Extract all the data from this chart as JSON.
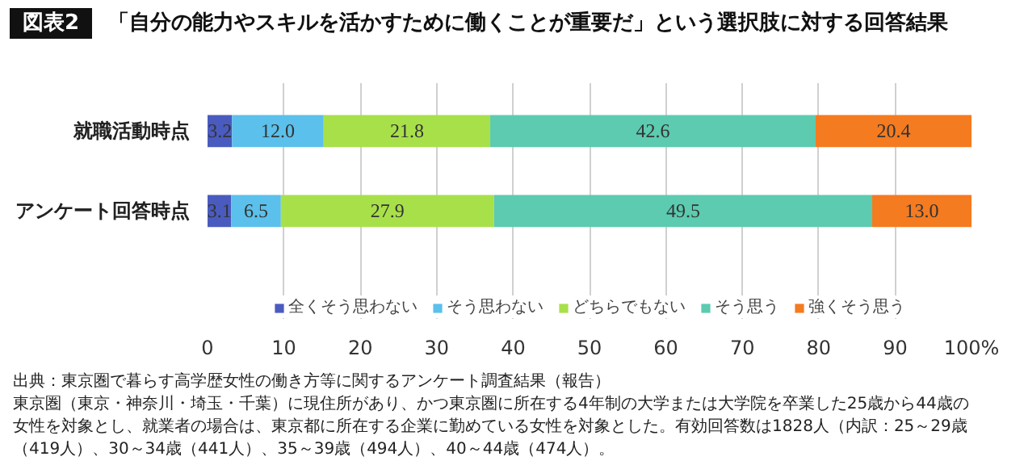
{
  "chart_data": {
    "type": "bar",
    "orientation": "horizontal",
    "stacked": true,
    "title": "図表2",
    "subtitle": "「自分の能力やスキルを活かすために働くことが重要だ」という選択肢に対する回答結果",
    "categories": [
      "就職活動時点",
      "アンケート回答時点"
    ],
    "series": [
      {
        "name": "全くそう思わない",
        "color": "#4a5bbf",
        "values": [
          3.2,
          3.1
        ],
        "value_labels": [
          "3.2",
          "3.1"
        ]
      },
      {
        "name": "そう思わない",
        "color": "#5bc0eb",
        "values": [
          12.0,
          6.5
        ],
        "value_labels": [
          "12.0",
          "6.5"
        ]
      },
      {
        "name": "どちらでもない",
        "color": "#a8e04a",
        "values": [
          21.8,
          27.9
        ],
        "value_labels": [
          "21.8",
          "27.9"
        ]
      },
      {
        "name": "そう思う",
        "color": "#5ccbb0",
        "values": [
          42.6,
          49.5
        ],
        "value_labels": [
          "42.6",
          "49.5"
        ]
      },
      {
        "name": "強くそう思う",
        "color": "#f47b20",
        "values": [
          20.4,
          13.0
        ],
        "value_labels": [
          "20.4",
          "13.0"
        ]
      }
    ],
    "xlim": [
      0,
      100
    ],
    "xticks": [
      0,
      10,
      20,
      30,
      40,
      50,
      60,
      70,
      80,
      90,
      {
        "value": 100,
        "label": "100%"
      }
    ],
    "grid": "x",
    "legend": "bottom",
    "annotations": [
      "出典：東京圏で暮らす高学歴女性の働き方等に関するアンケート調査結果（報告）",
      "東京圏（東京・神奈川・埼玉・千葉）に現住所があり、かつ東京圏に所在する4年制の大学または大学院を卒業した25歳から44歳の",
      "女性を対象とし、就業者の場合は、東京都に所在する企業に勤めている女性を対象とした。有効回答数は1828人（内訳：25～29歳",
      "（419人）、30～34歳（441人）、35～39歳（494人）、40～44歳（474人）。"
    ]
  }
}
